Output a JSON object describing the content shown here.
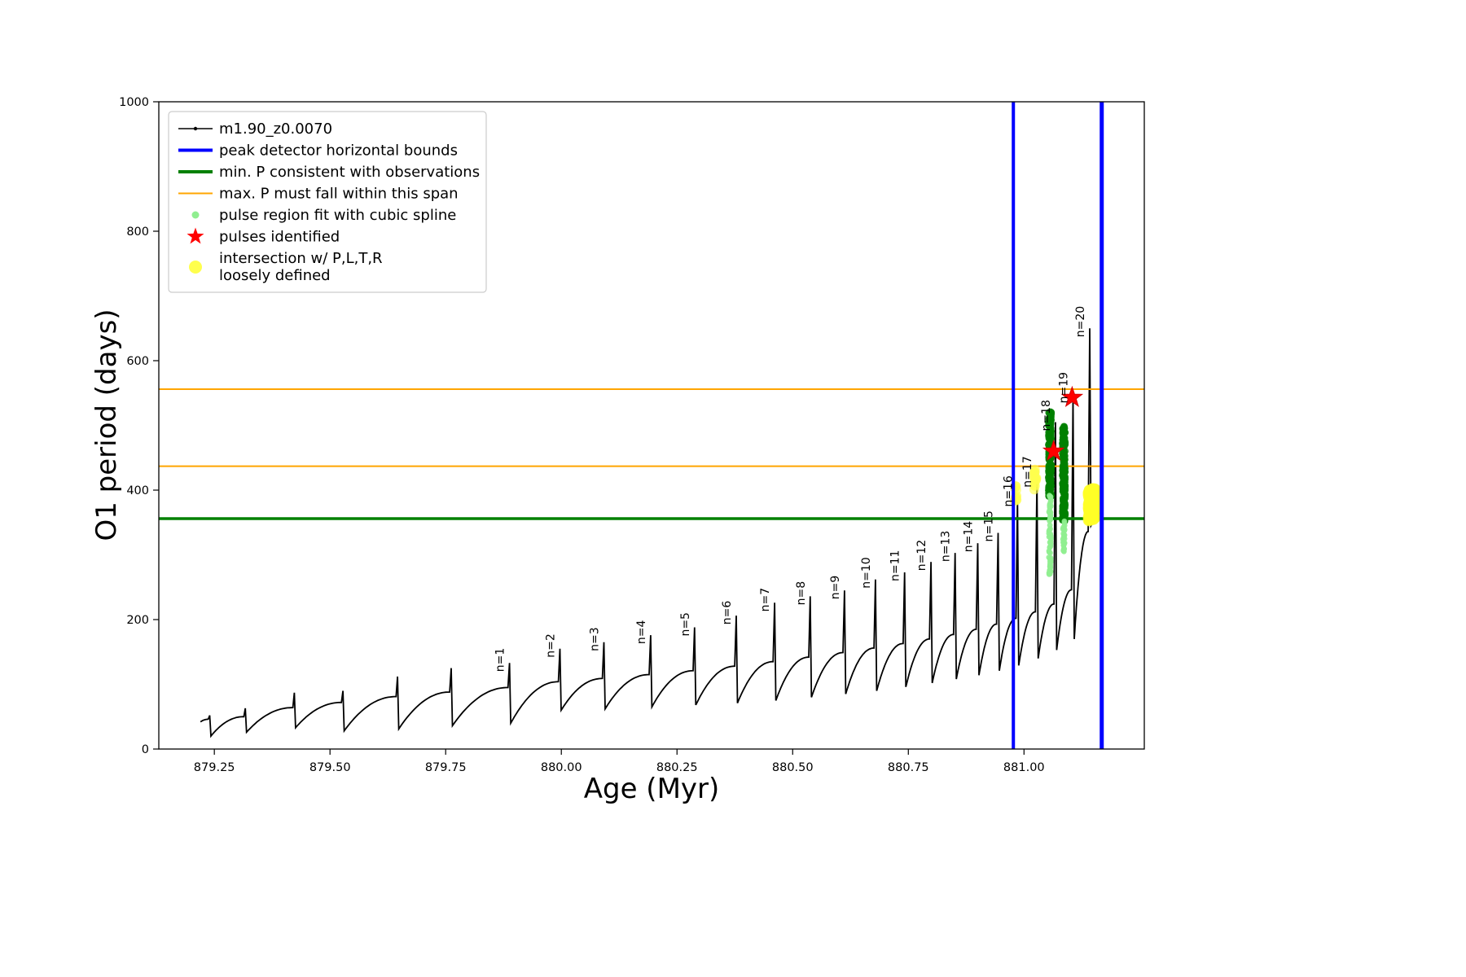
{
  "chart_data": {
    "type": "line",
    "title": "",
    "xlabel": "Age (Myr)",
    "ylabel": "O1 period (days)",
    "xlim": [
      879.13,
      881.26
    ],
    "ylim": [
      0,
      1000
    ],
    "grid": false,
    "legend_position": "upper left",
    "xticks": {
      "values": [
        879.25,
        879.5,
        879.75,
        880.0,
        880.25,
        880.5,
        880.75,
        881.0
      ],
      "labels": [
        "879.25",
        "879.50",
        "879.75",
        "880.00",
        "880.25",
        "880.50",
        "880.75",
        "881.00"
      ]
    },
    "yticks": {
      "values": [
        0,
        200,
        400,
        600,
        800,
        1000
      ],
      "labels": [
        "0",
        "200",
        "400",
        "600",
        "800",
        "1000"
      ]
    },
    "series": {
      "name": "m1.90_z0.0070",
      "color": "#000000",
      "start": {
        "x": 879.22,
        "y": 42
      },
      "pulses": [
        {
          "label": null,
          "x": 879.24,
          "peak": 52,
          "plateau": 46,
          "trough": 20
        },
        {
          "label": null,
          "x": 879.317,
          "peak": 63,
          "plateau": 50,
          "trough": 26
        },
        {
          "label": null,
          "x": 879.423,
          "peak": 87,
          "plateau": 64,
          "trough": 33
        },
        {
          "label": null,
          "x": 879.528,
          "peak": 90,
          "plateau": 72,
          "trough": 28
        },
        {
          "label": null,
          "x": 879.646,
          "peak": 112,
          "plateau": 81,
          "trough": 31
        },
        {
          "label": null,
          "x": 879.762,
          "peak": 125,
          "plateau": 88,
          "trough": 36
        },
        {
          "label": "n=1",
          "x": 879.888,
          "peak": 133,
          "plateau": 95,
          "trough": 40
        },
        {
          "label": "n=2",
          "x": 879.997,
          "peak": 155,
          "plateau": 104,
          "trough": 60
        },
        {
          "label": "n=3",
          "x": 880.092,
          "peak": 165,
          "plateau": 109,
          "trough": 62
        },
        {
          "label": "n=4",
          "x": 880.193,
          "peak": 176,
          "plateau": 115,
          "trough": 65
        },
        {
          "label": "n=5",
          "x": 880.288,
          "peak": 188,
          "plateau": 121,
          "trough": 68
        },
        {
          "label": "n=6",
          "x": 880.378,
          "peak": 206,
          "plateau": 128,
          "trough": 71
        },
        {
          "label": "n=7",
          "x": 880.461,
          "peak": 226,
          "plateau": 135,
          "trough": 75
        },
        {
          "label": "n=8",
          "x": 880.538,
          "peak": 236,
          "plateau": 142,
          "trough": 80
        },
        {
          "label": "n=9",
          "x": 880.612,
          "peak": 245,
          "plateau": 149,
          "trough": 85
        },
        {
          "label": "n=10",
          "x": 880.679,
          "peak": 262,
          "plateau": 156,
          "trough": 90
        },
        {
          "label": "n=11",
          "x": 880.742,
          "peak": 273,
          "plateau": 163,
          "trough": 96
        },
        {
          "label": "n=12",
          "x": 880.799,
          "peak": 289,
          "plateau": 170,
          "trough": 102
        },
        {
          "label": "n=13",
          "x": 880.851,
          "peak": 303,
          "plateau": 177,
          "trough": 108
        },
        {
          "label": "n=14",
          "x": 880.9,
          "peak": 318,
          "plateau": 185,
          "trough": 114
        },
        {
          "label": "n=15",
          "x": 880.944,
          "peak": 334,
          "plateau": 193,
          "trough": 121
        },
        {
          "label": "n=16",
          "x": 880.986,
          "peak": 388,
          "plateau": 202,
          "trough": 129
        },
        {
          "label": "n=17",
          "x": 881.028,
          "peak": 418,
          "plateau": 212,
          "trough": 140
        },
        {
          "label": "n=18",
          "x": 881.068,
          "peak": 505,
          "plateau": 224,
          "trough": 153
        },
        {
          "label": "n=19",
          "x": 881.106,
          "peak": 548,
          "plateau": 246,
          "trough": 170
        },
        {
          "label": "n=20",
          "x": 881.142,
          "peak": 650,
          "plateau": 336,
          "trough": 345
        }
      ],
      "tail": [
        [
          881.15,
          352
        ],
        [
          881.158,
          358
        ],
        [
          881.164,
          364
        ],
        [
          881.166,
          372
        ],
        [
          881.167,
          1000
        ],
        [
          881.1685,
          0
        ]
      ]
    },
    "hlines": [
      {
        "name": "min-p-line",
        "y": 356,
        "color": "#008000",
        "width": 3.5
      },
      {
        "name": "max-p-span-lower",
        "y": 437,
        "color": "#ffa500",
        "width": 2
      },
      {
        "name": "max-p-span-upper",
        "y": 556,
        "color": "#ffa500",
        "width": 2
      }
    ],
    "vlines": [
      {
        "name": "peak-bound-left",
        "x": 880.977,
        "color": "#0000ff",
        "width": 4
      },
      {
        "name": "peak-bound-right",
        "x": 881.168,
        "color": "#0000ff",
        "width": 5
      }
    ],
    "spline_regions": [
      {
        "x": 881.056,
        "x_jitter": 0.0032,
        "y_min": 390,
        "y_max": 522,
        "count": 260,
        "r": 4.2,
        "color": "#008000",
        "opacity": 0.85
      },
      {
        "x": 881.056,
        "x_jitter": 0.0022,
        "y_min": 264,
        "y_max": 392,
        "count": 70,
        "r": 3.4,
        "color": "#90ee90",
        "opacity": 0.9
      },
      {
        "x": 881.086,
        "x_jitter": 0.0032,
        "y_min": 350,
        "y_max": 500,
        "count": 260,
        "r": 4.2,
        "color": "#008000",
        "opacity": 0.85
      },
      {
        "x": 881.086,
        "x_jitter": 0.002,
        "y_min": 300,
        "y_max": 352,
        "count": 30,
        "r": 3.4,
        "color": "#90ee90",
        "opacity": 0.9
      }
    ],
    "intersection_regions": [
      {
        "x": 880.982,
        "x_jitter": 0.0025,
        "y_min": 382,
        "y_max": 408,
        "count": 10,
        "r": 6.0,
        "color": "#ffff4d",
        "opacity": 0.65
      },
      {
        "x": 881.024,
        "x_jitter": 0.0028,
        "y_min": 398,
        "y_max": 433,
        "count": 14,
        "r": 6.0,
        "color": "#ffff4d",
        "opacity": 0.65
      },
      {
        "x": 881.147,
        "x_jitter": 0.0085,
        "y_min": 352,
        "y_max": 403,
        "count": 140,
        "r": 6.5,
        "color": "#ffff26",
        "opacity": 0.7
      }
    ],
    "stars": {
      "fill": "#ff0000",
      "edge": "#d40000",
      "size": 13,
      "points": [
        {
          "x": 881.064,
          "y": 460
        },
        {
          "x": 881.104,
          "y": 543
        }
      ]
    },
    "legend": {
      "entries": [
        {
          "label": "m1.90_z0.0070",
          "marker": "line-dot",
          "color": "#000000",
          "lw": 1.5
        },
        {
          "label": "peak detector horizontal bounds",
          "marker": "line",
          "color": "#0000ff",
          "lw": 4
        },
        {
          "label": "min. P consistent with observations",
          "marker": "line",
          "color": "#008000",
          "lw": 4
        },
        {
          "label": "max. P must fall within this span",
          "marker": "line",
          "color": "#ffa500",
          "lw": 2
        },
        {
          "label": "pulse region fit with cubic spline",
          "marker": "dot",
          "color": "#90ee90",
          "r": 4.5
        },
        {
          "label": "pulses identified",
          "marker": "star",
          "color": "#ff0000",
          "r": 11
        },
        {
          "label": "intersection w/ P,L,T,R",
          "label2": "loosely defined",
          "marker": "dot",
          "color": "#ffff4d",
          "r": 8
        }
      ]
    }
  }
}
